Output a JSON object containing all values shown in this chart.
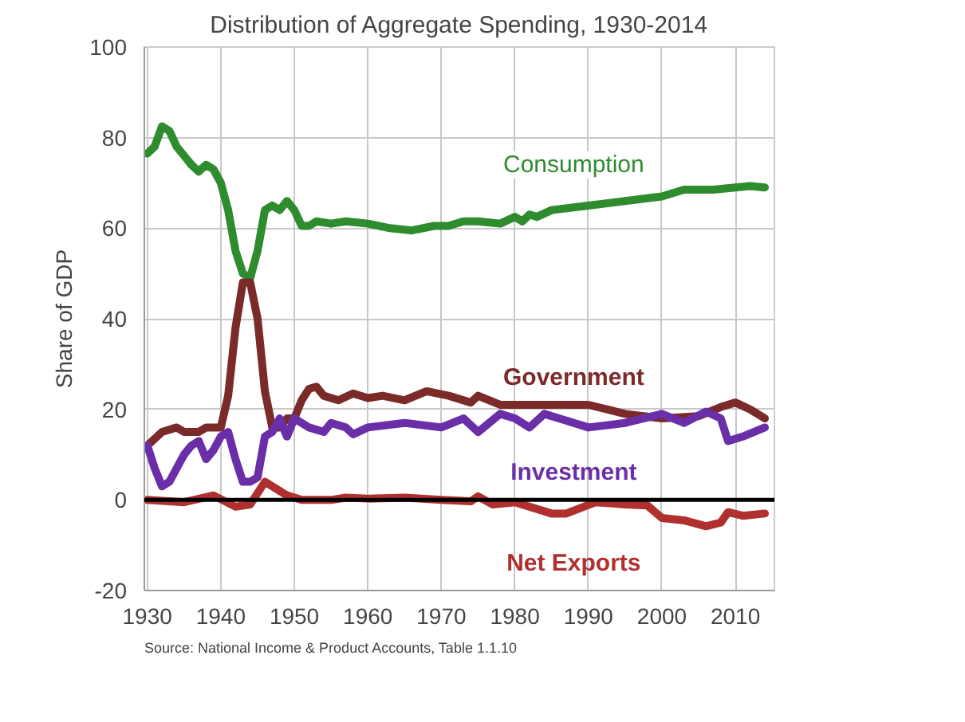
{
  "chart_data": {
    "type": "line",
    "title": "Distribution of Aggregate Spending, 1930-2014",
    "ylabel": "Share of GDP",
    "xlim": [
      1929.6,
      2015.3
    ],
    "xticks": [
      1930,
      1940,
      1950,
      1960,
      1970,
      1980,
      1990,
      2000,
      2010
    ],
    "ylim": [
      -20,
      100
    ],
    "yticks": [
      -20,
      0,
      20,
      40,
      60,
      80,
      100
    ],
    "grid": true,
    "line_style": "solid",
    "marker": "none",
    "ref_lines": [
      {
        "axis": "y",
        "value": 0,
        "color": "#000000",
        "line_style": "solid"
      }
    ],
    "annotations": [
      "Source: National Income & Product Accounts, Table 1.1.10"
    ],
    "series": [
      {
        "name": "Consumption",
        "color": "#2e8b2e",
        "x": [
          1930,
          1931,
          1932,
          1933,
          1934,
          1935,
          1936,
          1937,
          1938,
          1939,
          1940,
          1941,
          1942,
          1943,
          1944,
          1945,
          1946,
          1947,
          1948,
          1949,
          1950,
          1951,
          1952,
          1953,
          1955,
          1957,
          1960,
          1963,
          1966,
          1969,
          1971,
          1973,
          1975,
          1978,
          1980,
          1981,
          1982,
          1983,
          1985,
          1990,
          1995,
          2000,
          2003,
          2007,
          2010,
          2012,
          2014
        ],
        "values": [
          76.5,
          78,
          82.5,
          81.5,
          78,
          76,
          74,
          72.5,
          74,
          73,
          70,
          64,
          55,
          50,
          49,
          55,
          64,
          65,
          64,
          66,
          64,
          60.5,
          60.5,
          61.5,
          61,
          61.5,
          61,
          60,
          59.5,
          60.5,
          60.5,
          61.5,
          61.5,
          61,
          62.5,
          61.5,
          63,
          62.5,
          64,
          65,
          66,
          67,
          68.5,
          68.5,
          69,
          69.3,
          69
        ]
      },
      {
        "name": "Government",
        "color": "#7b2a2a",
        "x": [
          1930,
          1932,
          1934,
          1935,
          1937,
          1938,
          1940,
          1941,
          1942,
          1943,
          1944,
          1945,
          1946,
          1947,
          1948,
          1949,
          1950,
          1951,
          1952,
          1953,
          1954,
          1956,
          1958,
          1960,
          1962,
          1965,
          1968,
          1971,
          1974,
          1975,
          1978,
          1980,
          1985,
          1990,
          1995,
          2000,
          2005,
          2008,
          2010,
          2012,
          2014
        ],
        "values": [
          12,
          15,
          16,
          15,
          15,
          16,
          16,
          23,
          38,
          48,
          48,
          40,
          24,
          16,
          16,
          18,
          18,
          22,
          24.5,
          25,
          23,
          22,
          23.5,
          22.5,
          23,
          22,
          24,
          23,
          21.5,
          23,
          21,
          21,
          21,
          21,
          19,
          18,
          18.5,
          20.5,
          21.5,
          20,
          18
        ]
      },
      {
        "name": "Investment",
        "color": "#6a2fa8",
        "x": [
          1930,
          1931,
          1932,
          1933,
          1934,
          1935,
          1936,
          1937,
          1938,
          1939,
          1940,
          1941,
          1942,
          1943,
          1944,
          1945,
          1946,
          1947,
          1948,
          1949,
          1950,
          1952,
          1954,
          1955,
          1957,
          1958,
          1960,
          1965,
          1970,
          1973,
          1975,
          1978,
          1980,
          1982,
          1984,
          1986,
          1990,
          1995,
          2000,
          2003,
          2006,
          2008,
          2009,
          2011,
          2014
        ],
        "values": [
          12,
          7,
          3,
          4,
          7,
          10,
          12,
          13,
          9,
          11,
          14,
          15,
          9,
          4,
          4,
          5,
          14,
          15,
          18,
          14,
          18,
          16,
          15,
          17,
          16,
          14.5,
          16,
          17,
          16,
          18,
          15,
          19,
          18,
          16,
          19,
          18,
          16,
          17,
          19,
          17,
          19.5,
          18,
          13,
          14,
          16
        ]
      },
      {
        "name": "Net Exports",
        "color": "#b03030",
        "x": [
          1930,
          1935,
          1939,
          1942,
          1944,
          1946,
          1947,
          1949,
          1951,
          1955,
          1957,
          1960,
          1965,
          1970,
          1974,
          1975,
          1977,
          1980,
          1985,
          1987,
          1991,
          1995,
          1998,
          2000,
          2003,
          2006,
          2008,
          2009,
          2011,
          2014
        ],
        "values": [
          0,
          -0.5,
          1,
          -1.5,
          -1,
          4,
          3,
          1,
          0,
          0,
          0.5,
          0.3,
          0.5,
          0,
          -0.3,
          0.8,
          -1,
          -0.5,
          -3,
          -3,
          -0.5,
          -1,
          -1.2,
          -4,
          -4.5,
          -5.8,
          -5,
          -2.7,
          -3.5,
          -3
        ]
      }
    ]
  }
}
